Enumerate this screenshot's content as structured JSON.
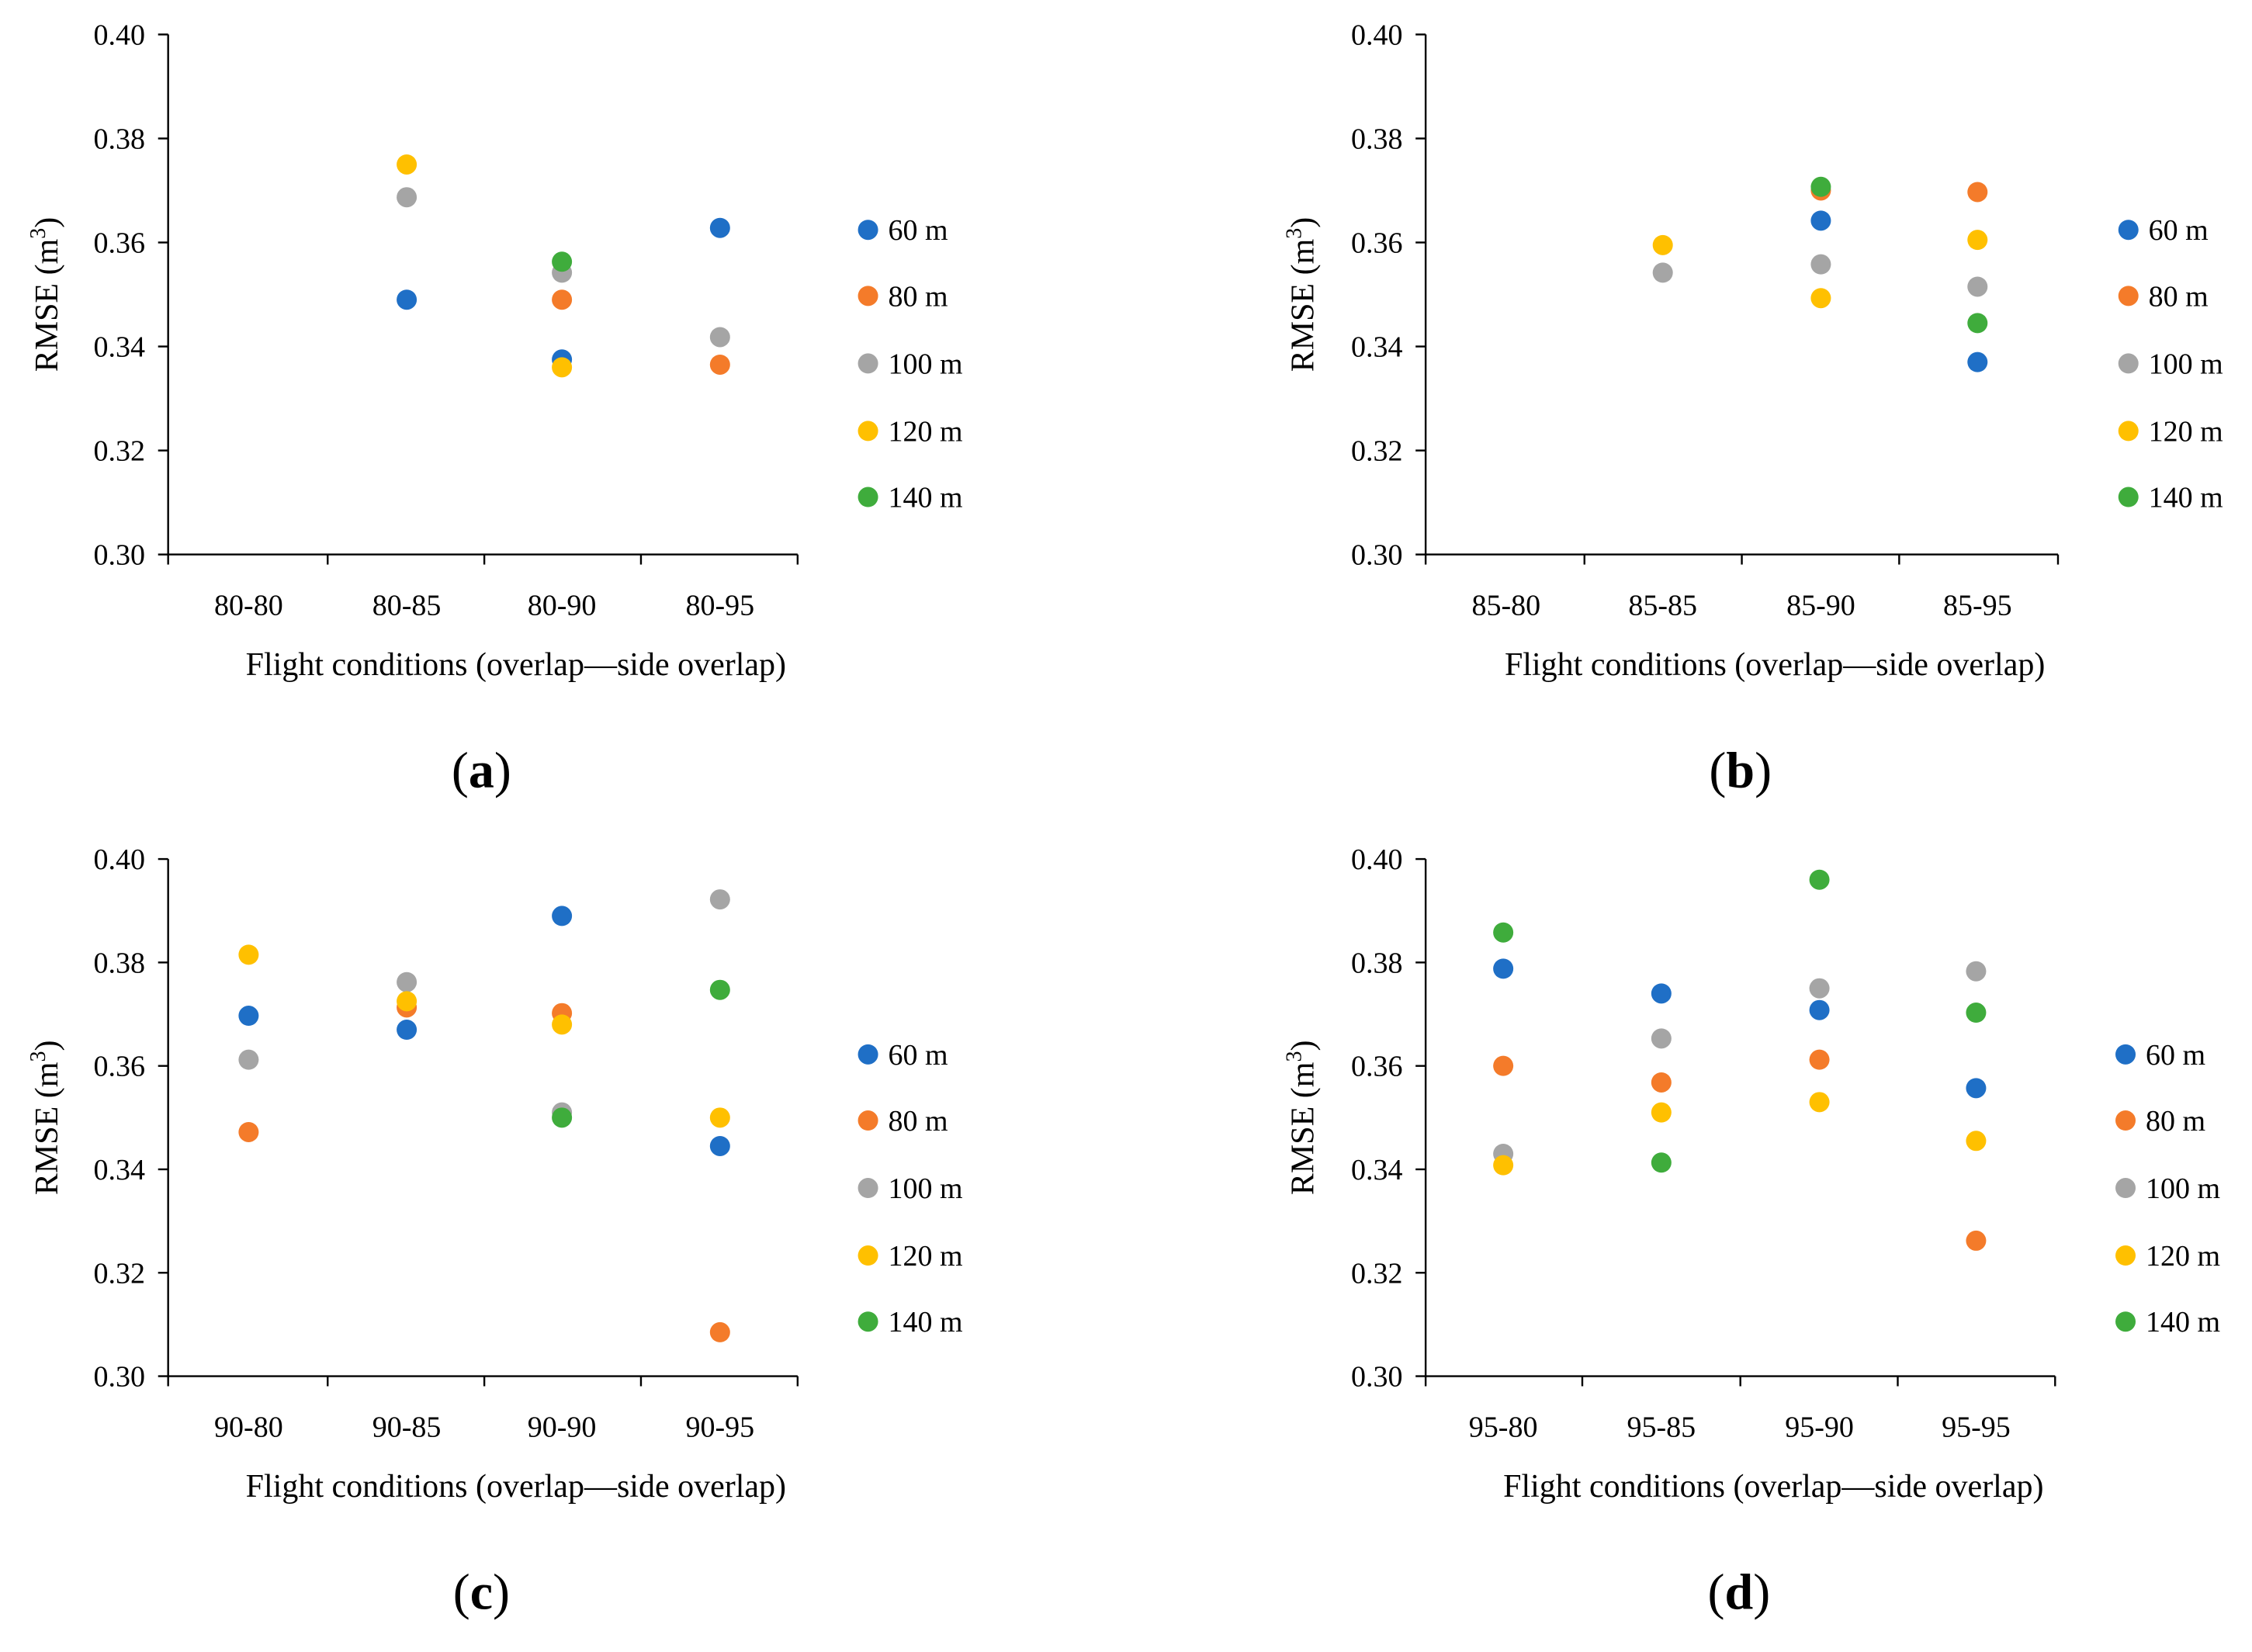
{
  "colors": {
    "60 m": "#1f6fc6",
    "80 m": "#f47b2a",
    "100 m": "#a5a5a5",
    "120 m": "#ffc000",
    "140 m": "#3fac3c"
  },
  "chart_data": [
    {
      "type": "scatter",
      "panel_label": "a",
      "categories": [
        "80-80",
        "80-85",
        "80-90",
        "80-95"
      ],
      "xlabel": "Flight conditions (overlap—side overlap)",
      "ylabel": "RMSE (m",
      "ylabel_sup": "3",
      "ylabel_end": ")",
      "ylim": [
        0.3,
        0.4
      ],
      "yticks": [
        "0.30",
        "0.32",
        "0.34",
        "0.36",
        "0.38",
        "0.40"
      ],
      "legend_position": "right",
      "series": [
        {
          "name": "60 m",
          "values": [
            null,
            0.349,
            0.3375,
            0.3628
          ]
        },
        {
          "name": "80 m",
          "values": [
            null,
            null,
            0.349,
            0.3365
          ]
        },
        {
          "name": "100 m",
          "values": [
            null,
            0.3687,
            0.3542,
            0.3418
          ]
        },
        {
          "name": "120 m",
          "values": [
            null,
            0.375,
            0.336,
            null
          ]
        },
        {
          "name": "140 m",
          "values": [
            null,
            null,
            0.3563,
            null
          ]
        }
      ]
    },
    {
      "type": "scatter",
      "panel_label": "b",
      "categories": [
        "85-80",
        "85-85",
        "85-90",
        "85-95"
      ],
      "xlabel": "Flight conditions (overlap—side overlap)",
      "ylabel": "RMSE (m",
      "ylabel_sup": "3",
      "ylabel_end": ")",
      "ylim": [
        0.3,
        0.4
      ],
      "yticks": [
        "0.30",
        "0.32",
        "0.34",
        "0.36",
        "0.38",
        "0.40"
      ],
      "legend_position": "right",
      "series": [
        {
          "name": "60 m",
          "values": [
            null,
            null,
            0.3642,
            0.337
          ]
        },
        {
          "name": "80 m",
          "values": [
            null,
            null,
            0.37,
            0.3697
          ]
        },
        {
          "name": "100 m",
          "values": [
            null,
            0.3542,
            0.3558,
            0.3515
          ]
        },
        {
          "name": "120 m",
          "values": [
            null,
            0.3595,
            0.3493,
            0.3605
          ]
        },
        {
          "name": "140 m",
          "values": [
            null,
            null,
            0.3707,
            0.3445
          ]
        }
      ]
    },
    {
      "type": "scatter",
      "panel_label": "c",
      "categories": [
        "90-80",
        "90-85",
        "90-90",
        "90-95"
      ],
      "xlabel": "Flight conditions (overlap—side overlap)",
      "ylabel": "RMSE (m",
      "ylabel_sup": "3",
      "ylabel_end": ")",
      "ylim": [
        0.3,
        0.4
      ],
      "yticks": [
        "0.30",
        "0.32",
        "0.34",
        "0.36",
        "0.38",
        "0.40"
      ],
      "legend_position": "right",
      "series": [
        {
          "name": "60 m",
          "values": [
            0.3697,
            0.367,
            0.389,
            0.3445
          ]
        },
        {
          "name": "80 m",
          "values": [
            0.3472,
            0.3713,
            0.3702,
            0.3085
          ]
        },
        {
          "name": "100 m",
          "values": [
            0.3612,
            0.3762,
            0.351,
            0.3922
          ]
        },
        {
          "name": "120 m",
          "values": [
            0.3815,
            0.3725,
            0.368,
            0.35
          ]
        },
        {
          "name": "140 m",
          "values": [
            null,
            null,
            0.35,
            0.3747
          ]
        }
      ]
    },
    {
      "type": "scatter",
      "panel_label": "d",
      "categories": [
        "95-80",
        "95-85",
        "95-90",
        "95-95"
      ],
      "xlabel": "Flight conditions (overlap—side overlap)",
      "ylabel": "RMSE (m",
      "ylabel_sup": "3",
      "ylabel_end": ")",
      "ylim": [
        0.3,
        0.4
      ],
      "yticks": [
        "0.30",
        "0.32",
        "0.34",
        "0.36",
        "0.38",
        "0.40"
      ],
      "legend_position": "right",
      "series": [
        {
          "name": "60 m",
          "values": [
            0.3788,
            0.374,
            0.3708,
            0.3557
          ]
        },
        {
          "name": "80 m",
          "values": [
            0.36,
            0.3568,
            0.3612,
            0.3262
          ]
        },
        {
          "name": "100 m",
          "values": [
            0.343,
            0.3653,
            0.375,
            0.3783
          ]
        },
        {
          "name": "120 m",
          "values": [
            0.3408,
            0.351,
            0.353,
            0.3455
          ]
        },
        {
          "name": "140 m",
          "values": [
            0.3858,
            0.3413,
            0.396,
            0.3703
          ]
        }
      ]
    }
  ]
}
